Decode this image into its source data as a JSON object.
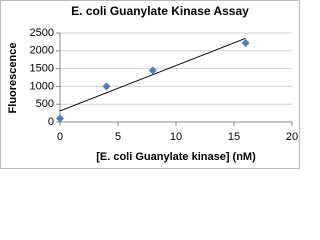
{
  "chart_data": {
    "type": "scatter",
    "title": "E. coli Guanylate Kinase Assay",
    "x_label": "[E. coli Guanylate kinase] (nM)",
    "y_label": "Fluorescence",
    "series": [
      {
        "x": [
          0,
          4,
          8,
          16
        ],
        "values": [
          100,
          1000,
          1450,
          2220
        ],
        "color": "#4a7ebb"
      }
    ],
    "trendline": {
      "x": [
        0,
        16
      ],
      "values": [
        310,
        2350
      ],
      "color": "#000000"
    },
    "xlim": [
      0,
      20
    ],
    "xticks": [
      0,
      5,
      10,
      15,
      20
    ],
    "ylim": [
      0,
      2500
    ],
    "yticks": [
      0,
      500,
      1000,
      1500,
      2000,
      2500
    ],
    "grid": true
  }
}
